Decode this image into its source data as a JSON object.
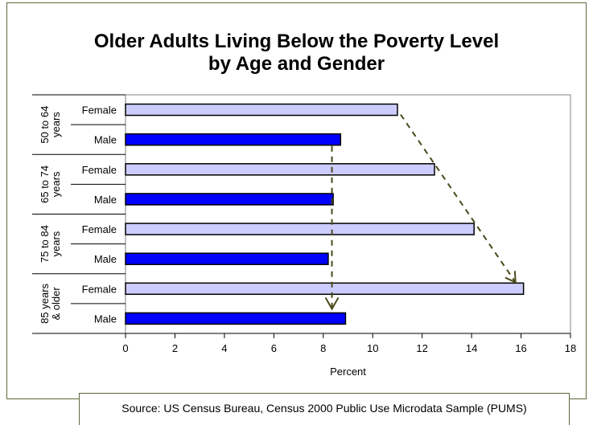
{
  "title_line1": "Older Adults Living Below the Poverty Level",
  "title_line2": "by Age and Gender",
  "source": "Source: US Census Bureau, Census 2000 Public Use Microdata Sample (PUMS)",
  "colors": {
    "female": "#ccccff",
    "male": "#0000ff",
    "arrow": "#4a4a1a"
  },
  "chart_data": {
    "type": "bar",
    "orientation": "horizontal",
    "xlabel": "Percent",
    "xlim": [
      0,
      18
    ],
    "xticks": [
      "0",
      "2",
      "4",
      "6",
      "8",
      "10",
      "12",
      "14",
      "16",
      "18"
    ],
    "groups": [
      {
        "label": "50 to 64 years",
        "bars": [
          {
            "name": "Female",
            "value": 11.0
          },
          {
            "name": "Male",
            "value": 8.7
          }
        ]
      },
      {
        "label": "65 to 74 years",
        "bars": [
          {
            "name": "Female",
            "value": 12.5
          },
          {
            "name": "Male",
            "value": 8.4
          }
        ]
      },
      {
        "label": "75 to 84 years",
        "bars": [
          {
            "name": "Female",
            "value": 14.1
          },
          {
            "name": "Male",
            "value": 8.2
          }
        ]
      },
      {
        "label": "85 years & older",
        "bars": [
          {
            "name": "Female",
            "value": 16.1
          },
          {
            "name": "Male",
            "value": 8.9
          }
        ]
      }
    ],
    "grid": false,
    "legend": "none"
  }
}
